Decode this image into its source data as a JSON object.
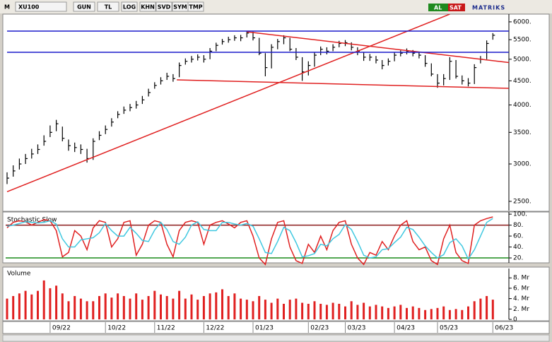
{
  "toolbar": {
    "menu": "M",
    "symbol": "XU100",
    "buttons": [
      "GUN",
      "TL",
      "LOG",
      "KHN",
      "SVD",
      "SYM",
      "TMP"
    ],
    "buy": "AL",
    "sell": "SAT",
    "brand": "MATRIKS"
  },
  "chart_data": [
    {
      "type": "ohlc",
      "log_scale": true,
      "color": "#000000",
      "ylim": [
        2390,
        6230
      ],
      "yticks": [
        {
          "value": 6000,
          "label": "6000."
        },
        {
          "value": 5500,
          "label": "5500."
        },
        {
          "value": 5000,
          "label": "5000."
        },
        {
          "value": 4500,
          "label": "4500."
        },
        {
          "value": 4000,
          "label": "4000."
        },
        {
          "value": 3500,
          "label": "3500."
        },
        {
          "value": 3000,
          "label": "3000."
        },
        {
          "value": 2500,
          "label": "2500."
        }
      ],
      "close": [
        2800,
        2900,
        3000,
        3080,
        3150,
        3220,
        3350,
        3500,
        3650,
        3400,
        3280,
        3250,
        3220,
        3080,
        3350,
        3450,
        3550,
        3680,
        3820,
        3900,
        3950,
        4000,
        4100,
        4250,
        4400,
        4500,
        4600,
        4550,
        4850,
        4950,
        5000,
        5050,
        5000,
        5200,
        5350,
        5450,
        5500,
        5550,
        5550,
        5680,
        5550,
        5150,
        4800,
        5300,
        5450,
        5550,
        5250,
        5050,
        4700,
        4850,
        5100,
        5250,
        5200,
        5300,
        5400,
        5420,
        5300,
        5200,
        5050,
        5050,
        4980,
        4850,
        4950,
        5100,
        5150,
        5200,
        5150,
        5100,
        4900,
        4650,
        4450,
        4550,
        4950,
        4600,
        4500,
        4450,
        4800,
        5000,
        5400,
        5620
      ],
      "high": [
        2880,
        2980,
        3080,
        3150,
        3230,
        3300,
        3450,
        3620,
        3720,
        3600,
        3380,
        3330,
        3300,
        3230,
        3400,
        3520,
        3620,
        3750,
        3880,
        3970,
        4020,
        4080,
        4180,
        4330,
        4470,
        4580,
        4680,
        4650,
        4920,
        5020,
        5080,
        5120,
        5100,
        5280,
        5420,
        5520,
        5580,
        5620,
        5630,
        5740,
        5720,
        5550,
        5150,
        5380,
        5520,
        5620,
        5550,
        5280,
        5050,
        4950,
        5180,
        5320,
        5300,
        5380,
        5470,
        5490,
        5430,
        5300,
        5180,
        5130,
        5080,
        4980,
        5020,
        5170,
        5220,
        5270,
        5230,
        5180,
        5100,
        4900,
        4650,
        4650,
        5050,
        4980,
        4620,
        4560,
        4880,
        5080,
        5480,
        5680
      ],
      "low": [
        2720,
        2820,
        2920,
        3000,
        3080,
        3150,
        3280,
        3420,
        3520,
        3350,
        3200,
        3180,
        3150,
        3020,
        3060,
        3370,
        3470,
        3600,
        3750,
        3830,
        3880,
        3930,
        4020,
        4170,
        4330,
        4420,
        4520,
        4480,
        4580,
        4870,
        4920,
        4970,
        4920,
        5000,
        5200,
        5370,
        5420,
        5470,
        5460,
        5560,
        5480,
        5100,
        4600,
        4780,
        5250,
        5380,
        5200,
        4980,
        4500,
        4620,
        4820,
        5100,
        5120,
        5200,
        5300,
        5330,
        5220,
        5100,
        4960,
        4960,
        4900,
        4760,
        4850,
        4950,
        5070,
        5120,
        5070,
        5020,
        4820,
        4600,
        4350,
        4400,
        4520,
        4550,
        4420,
        4380,
        4430,
        4900,
        5000,
        5500
      ],
      "lines": [
        {
          "color": "#e02020",
          "x": [
            0,
            72
          ],
          "y": [
            2620,
            6230
          ]
        },
        {
          "color": "#e02020",
          "x": [
            39,
            81.6
          ],
          "y": [
            5715,
            4920
          ]
        },
        {
          "color": "#e02020",
          "x": [
            27.6,
            81.6
          ],
          "y": [
            4521,
            4338
          ]
        },
        {
          "color": "#1c1ccc",
          "x": [
            0,
            81.6
          ],
          "y": [
            5736,
            5736
          ]
        },
        {
          "color": "#1c1ccc",
          "x": [
            0,
            81.6
          ],
          "y": [
            5172,
            5172
          ]
        }
      ]
    },
    {
      "type": "line",
      "title": "Stochastic Slow",
      "ylim": [
        11,
        104
      ],
      "yticks": [
        {
          "value": 100,
          "label": "100."
        },
        {
          "value": 80,
          "label": "80."
        },
        {
          "value": 60,
          "label": "60."
        },
        {
          "value": 40,
          "label": "40."
        },
        {
          "value": 20,
          "label": "20."
        }
      ],
      "levels": [
        {
          "value": 80,
          "color": "#8b1a1a"
        },
        {
          "value": 20,
          "color": "#1a8b1a"
        }
      ],
      "series": [
        {
          "color": "#e02020",
          "values": [
            75,
            85,
            88,
            86,
            80,
            85,
            90,
            88,
            70,
            22,
            30,
            70,
            60,
            35,
            75,
            88,
            85,
            40,
            55,
            85,
            88,
            25,
            45,
            80,
            88,
            85,
            45,
            22,
            70,
            85,
            88,
            85,
            45,
            80,
            85,
            88,
            82,
            75,
            85,
            88,
            60,
            20,
            8,
            55,
            85,
            88,
            40,
            15,
            10,
            45,
            30,
            60,
            35,
            70,
            85,
            88,
            45,
            20,
            8,
            30,
            25,
            50,
            35,
            60,
            80,
            88,
            50,
            35,
            40,
            15,
            8,
            55,
            80,
            30,
            15,
            10,
            80,
            88,
            92,
            95
          ]
        },
        {
          "color": "#40c8e0",
          "values": [
            78,
            80,
            83,
            86,
            85,
            84,
            85,
            88,
            82,
            55,
            40,
            40,
            53,
            55,
            57,
            66,
            83,
            70,
            60,
            60,
            76,
            65,
            52,
            50,
            71,
            85,
            72,
            50,
            45,
            58,
            80,
            86,
            72,
            70,
            70,
            85,
            85,
            82,
            80,
            83,
            78,
            55,
            30,
            28,
            50,
            76,
            70,
            48,
            22,
            24,
            28,
            45,
            42,
            55,
            63,
            81,
            72,
            50,
            25,
            20,
            22,
            35,
            37,
            48,
            58,
            76,
            72,
            58,
            42,
            30,
            20,
            26,
            48,
            55,
            42,
            18,
            35,
            60,
            85,
            92
          ]
        }
      ]
    },
    {
      "type": "bar",
      "title": "Volume",
      "color": "#e02020",
      "ylim": [
        0,
        9.8
      ],
      "yticks": [
        {
          "value": 8,
          "label": "8. Mr"
        },
        {
          "value": 6,
          "label": "6. Mr"
        },
        {
          "value": 4,
          "label": "4. Mr"
        },
        {
          "value": 2,
          "label": "2. Mr"
        },
        0
      ],
      "categories": [
        null,
        null,
        null,
        null,
        null,
        null,
        null,
        "09/22",
        null,
        null,
        null,
        null,
        null,
        null,
        null,
        null,
        "10/22",
        null,
        null,
        null,
        null,
        null,
        null,
        null,
        "11/22",
        null,
        null,
        null,
        null,
        null,
        null,
        null,
        "12/22",
        null,
        null,
        null,
        null,
        null,
        null,
        null,
        "01/23",
        null,
        null,
        null,
        null,
        null,
        null,
        null,
        null,
        "02/23",
        null,
        null,
        null,
        null,
        null,
        "03/23",
        null,
        null,
        null,
        null,
        null,
        null,
        null,
        "04/23",
        null,
        null,
        null,
        null,
        null,
        null,
        "05/23",
        null,
        null,
        null,
        null,
        null,
        null,
        null,
        null,
        "06/23"
      ],
      "values": [
        4,
        4.5,
        5,
        5.5,
        4.8,
        5.5,
        7.5,
        6,
        6.5,
        5,
        3.5,
        4.5,
        4,
        3.5,
        3.5,
        4.5,
        5,
        4.2,
        5,
        4.5,
        4,
        5,
        3.8,
        4.5,
        5.5,
        4.8,
        4.5,
        4,
        5.5,
        4,
        4.8,
        3.8,
        4.5,
        5,
        5.2,
        5.8,
        4.5,
        5,
        4,
        3.8,
        3.5,
        4.5,
        3.8,
        3.2,
        4,
        3,
        3.8,
        4,
        3.2,
        3,
        3.5,
        3,
        2.8,
        3.2,
        3,
        2.5,
        3.5,
        2.8,
        3.2,
        2.5,
        2.8,
        2.5,
        2.2,
        2.5,
        2.8,
        2.2,
        2.5,
        2.2,
        1.8,
        2,
        2.2,
        2.5,
        1.8,
        2,
        1.8,
        2.5,
        3.5,
        4,
        4.5,
        3.8
      ]
    }
  ]
}
